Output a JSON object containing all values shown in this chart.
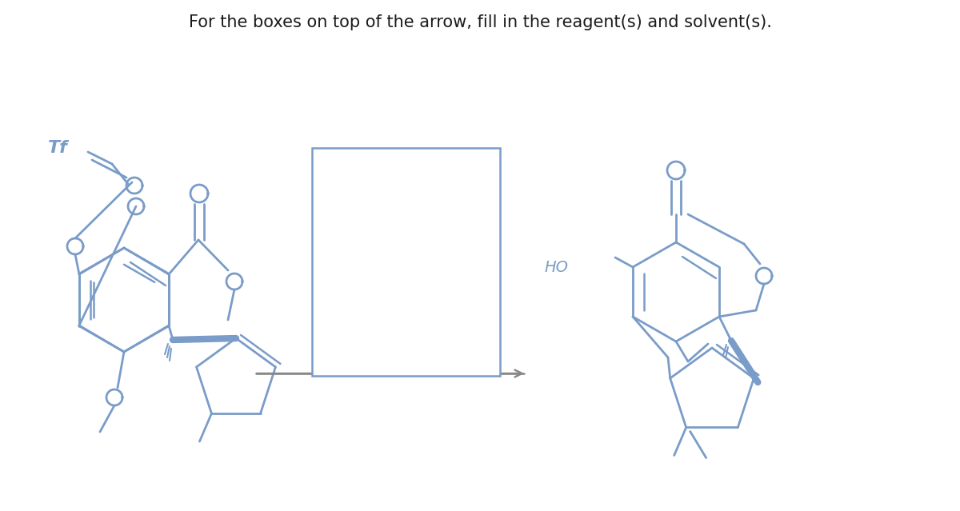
{
  "title": "For the boxes on top of the arrow, fill in the reagent(s) and solvent(s).",
  "bg_color": "#ffffff",
  "molecule_color": "#7a9cc8",
  "text_color": "#1a1a1a",
  "box_color": "#7a9cc8",
  "figsize": [
    12.0,
    6.39
  ],
  "dpi": 100
}
